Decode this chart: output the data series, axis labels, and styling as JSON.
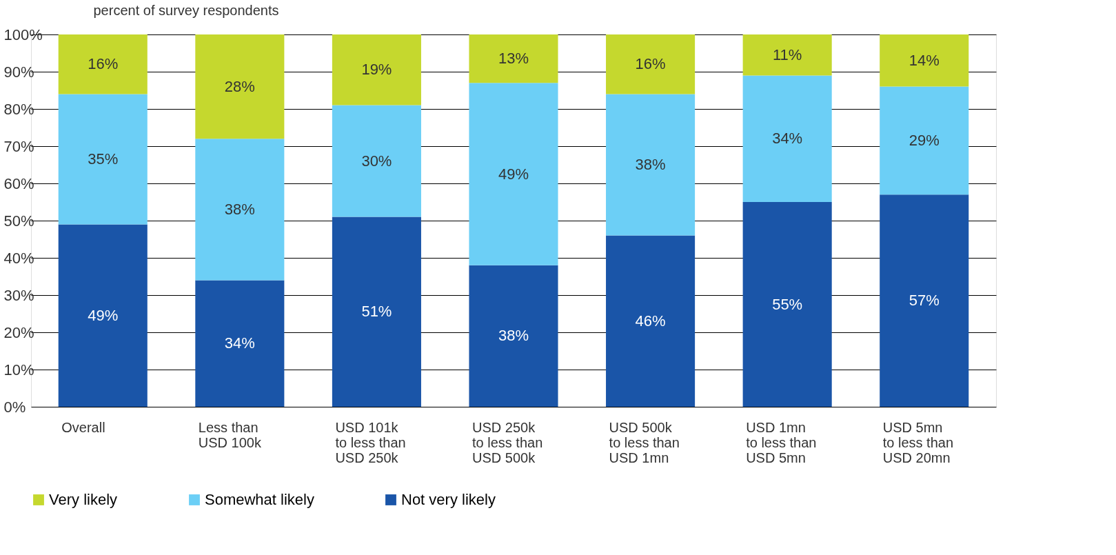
{
  "chart_data": {
    "type": "bar",
    "stacked": true,
    "ylabel": "percent of survey respondents",
    "categories": [
      "Overall",
      "Less than USD 100k",
      "USD 101k to less than USD 250k",
      "USD 250k to less than USD 500k",
      "USD 500k to less than USD 1mn",
      "USD 1mn to less than USD 5mn",
      "USD 5mn to less than USD 20mn"
    ],
    "series": [
      {
        "name": "Not very likely",
        "color": "#1a55a8",
        "values": [
          49,
          34,
          51,
          38,
          46,
          55,
          57
        ],
        "value_labels": [
          "49%",
          "34%",
          "51%",
          "38%",
          "46%",
          "55%",
          "57%"
        ]
      },
      {
        "name": "Somewhat likely",
        "color": "#6ccff6",
        "values": [
          35,
          38,
          30,
          49,
          38,
          34,
          29
        ],
        "value_labels": [
          "35%",
          "38%",
          "30%",
          "49%",
          "38%",
          "34%",
          "29%"
        ]
      },
      {
        "name": "Very likely",
        "color": "#c5d82e",
        "values": [
          16,
          28,
          19,
          13,
          16,
          11,
          14
        ],
        "value_labels": [
          "16%",
          "28%",
          "19%",
          "13%",
          "16%",
          "11%",
          "14%"
        ]
      }
    ],
    "ylim": [
      0,
      100
    ],
    "yticks": [
      {
        "value": 0,
        "label": "0%"
      },
      {
        "value": 10,
        "label": "10%"
      },
      {
        "value": 20,
        "label": "20%"
      },
      {
        "value": 30,
        "label": "30%"
      },
      {
        "value": 40,
        "label": "40%"
      },
      {
        "value": 50,
        "label": "50%"
      },
      {
        "value": 60,
        "label": "60%"
      },
      {
        "value": 70,
        "label": "70%"
      },
      {
        "value": 80,
        "label": "80%"
      },
      {
        "value": 90,
        "label": "90%"
      },
      {
        "value": 100,
        "label": "100%"
      }
    ],
    "grid": "y",
    "legend": "bottom"
  }
}
